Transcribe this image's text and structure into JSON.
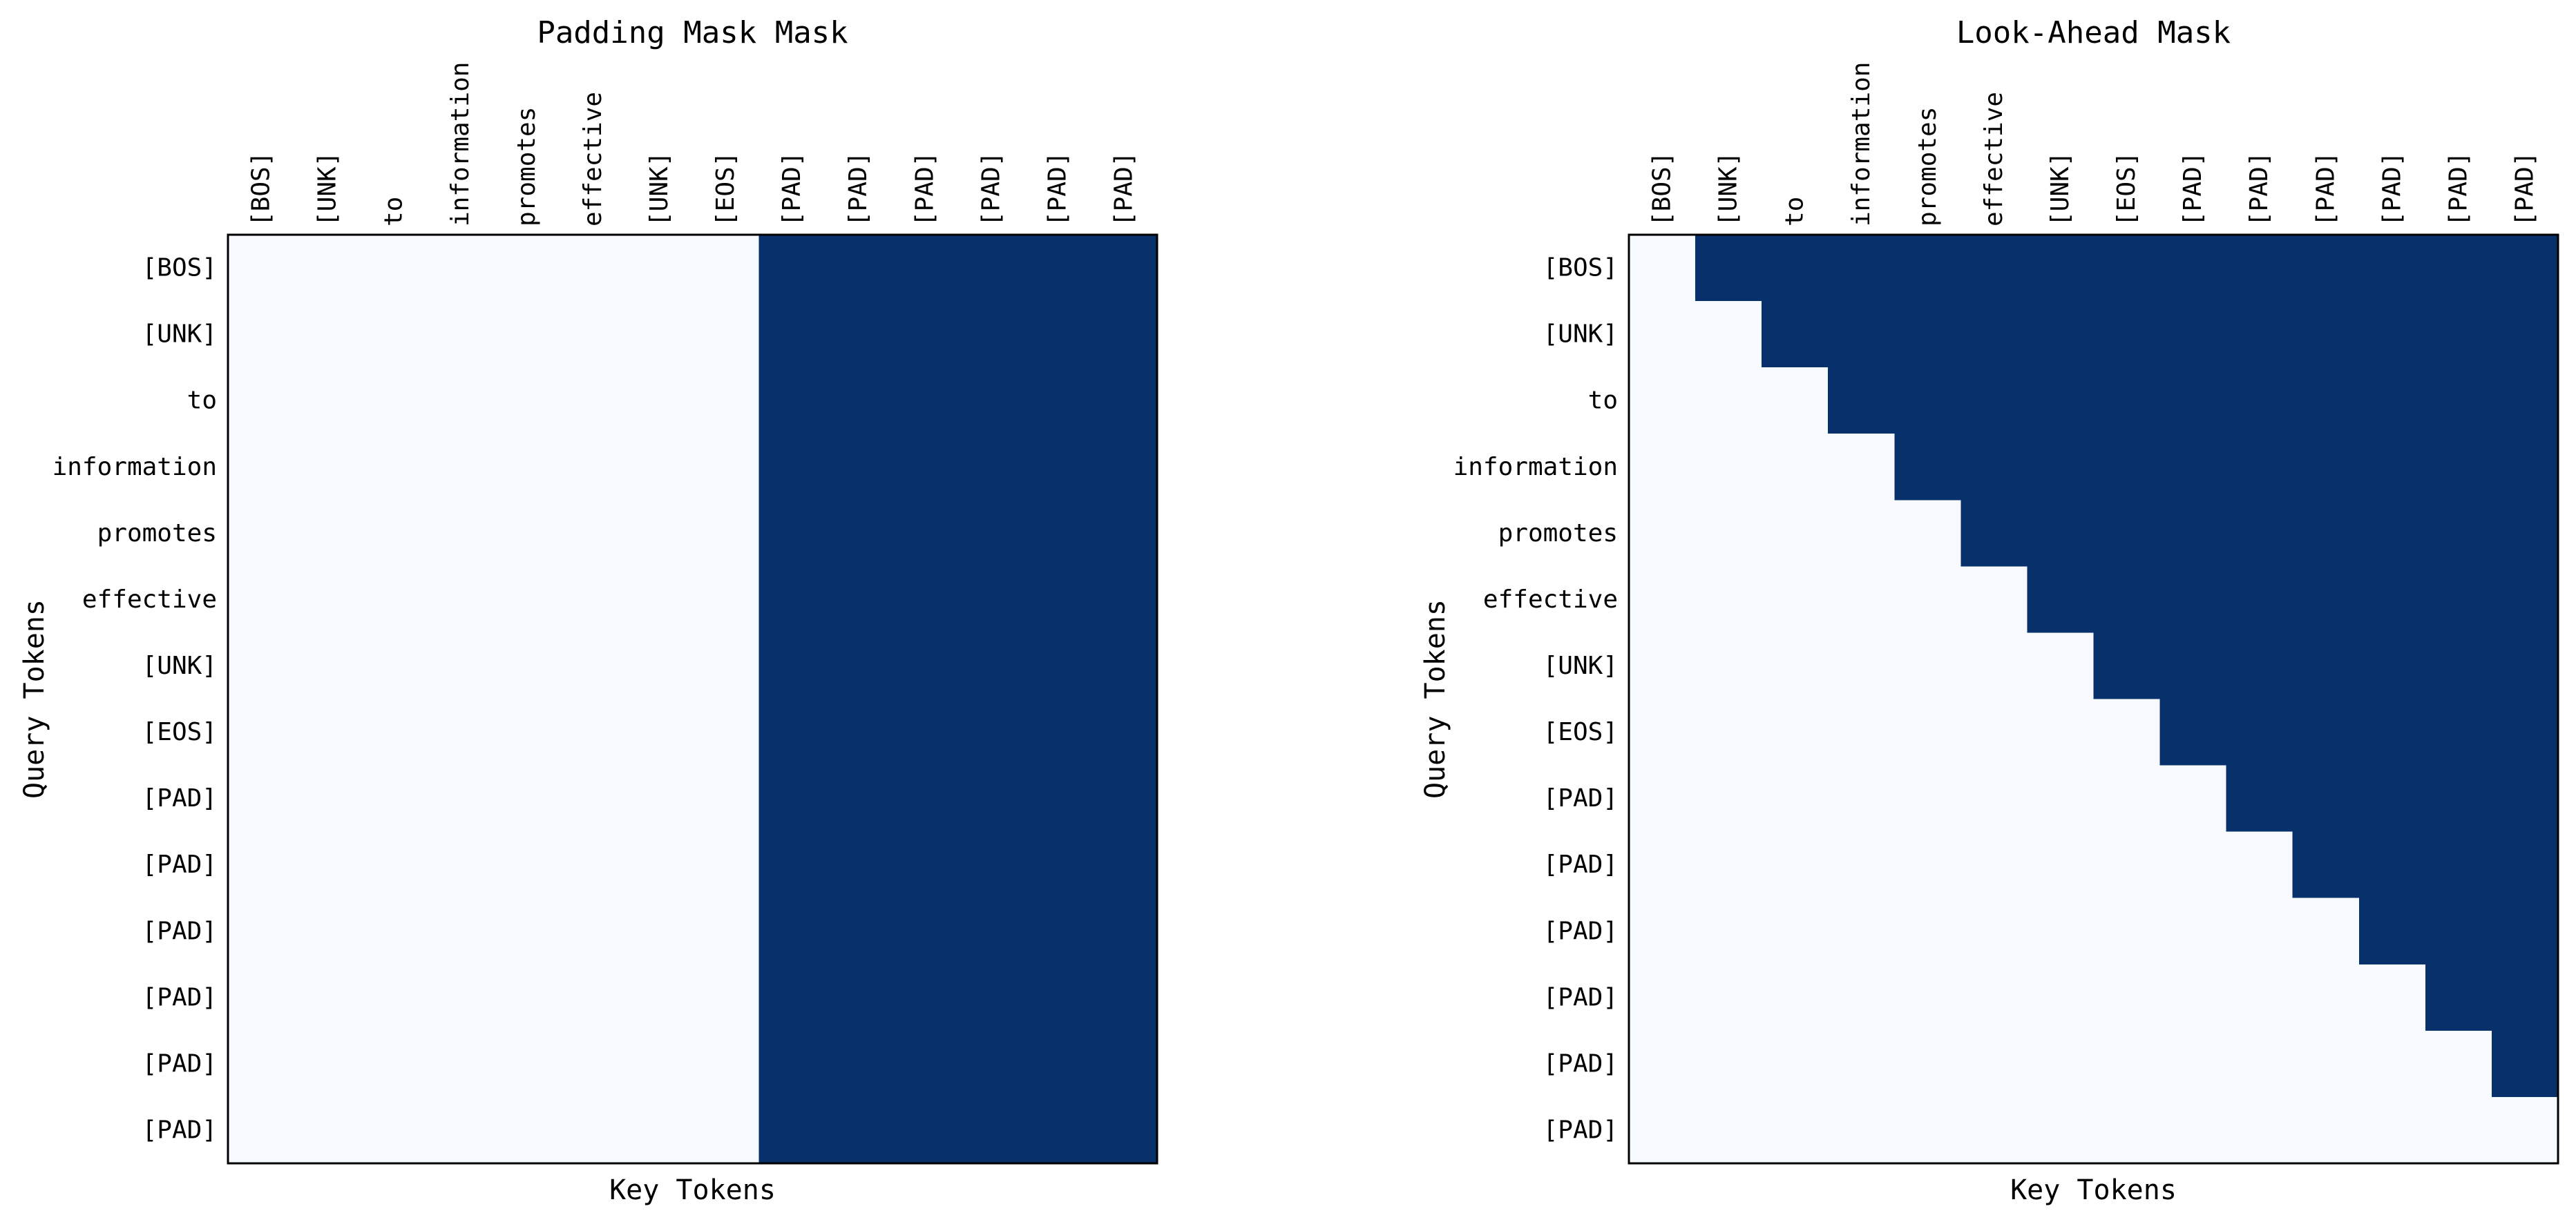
{
  "chart_data": [
    {
      "type": "heatmap",
      "title": "Padding Mask Mask",
      "xlabel": "Key Tokens",
      "ylabel": "Query Tokens",
      "x_tokens": [
        "[BOS]",
        "[UNK]",
        "to",
        "information",
        "promotes",
        "effective",
        "[UNK]",
        "[EOS]",
        "[PAD]",
        "[PAD]",
        "[PAD]",
        "[PAD]",
        "[PAD]",
        "[PAD]"
      ],
      "y_tokens": [
        "[BOS]",
        "[UNK]",
        "to",
        "information",
        "promotes",
        "effective",
        "[UNK]",
        "[EOS]",
        "[PAD]",
        "[PAD]",
        "[PAD]",
        "[PAD]",
        "[PAD]",
        "[PAD]"
      ],
      "mask_rule": "key_index >= 8",
      "colormap": {
        "low": "#f7fbff",
        "high": "#08306b"
      }
    },
    {
      "type": "heatmap",
      "title": "Look-Ahead Mask",
      "xlabel": "Key Tokens",
      "ylabel": "Query Tokens",
      "x_tokens": [
        "[BOS]",
        "[UNK]",
        "to",
        "information",
        "promotes",
        "effective",
        "[UNK]",
        "[EOS]",
        "[PAD]",
        "[PAD]",
        "[PAD]",
        "[PAD]",
        "[PAD]",
        "[PAD]"
      ],
      "y_tokens": [
        "[BOS]",
        "[UNK]",
        "to",
        "information",
        "promotes",
        "effective",
        "[UNK]",
        "[EOS]",
        "[PAD]",
        "[PAD]",
        "[PAD]",
        "[PAD]",
        "[PAD]",
        "[PAD]"
      ],
      "mask_rule": "key_index > query_index",
      "colormap": {
        "low": "#f7fbff",
        "high": "#08306b"
      }
    }
  ]
}
